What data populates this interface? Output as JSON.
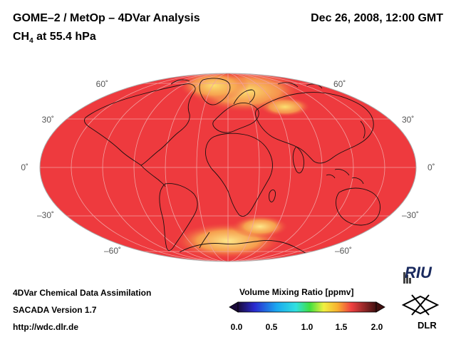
{
  "header": {
    "title": "GOME–2 / MetOp – 4DVar Analysis",
    "subtitle_species": "CH",
    "subtitle_subscript": "4",
    "subtitle_level": " at 55.4 hPa",
    "timestamp": "Dec 26, 2008, 12:00 GMT"
  },
  "map": {
    "projection": "Mollweide",
    "latitude_labels": [
      {
        "lat": 60,
        "text": "60˚"
      },
      {
        "lat": 30,
        "text": "30˚"
      },
      {
        "lat": 0,
        "text": "0˚"
      },
      {
        "lat": -30,
        "text": "–30˚"
      },
      {
        "lat": -60,
        "text": "–60˚"
      }
    ],
    "background_value_ppmv": 1.75,
    "colors": {
      "background_field": "#ee3a3e",
      "high_lat_field": "#f7c050",
      "graticule": "#f2a0a0",
      "coastline": "#1a1010"
    }
  },
  "colorbar": {
    "title": "Volume Mixing Ratio [ppmv]",
    "ticks": [
      "0.0",
      "0.5",
      "1.0",
      "1.5",
      "2.0"
    ],
    "min": 0.0,
    "max": 2.0
  },
  "footer": {
    "line1": "4DVar Chemical Data Assimilation",
    "line2": "SACADA Version 1.7",
    "url": "http://wdc.dlr.de"
  },
  "logos": {
    "riu_text": "RIU",
    "dlr_text": "DLR",
    "riu_icon": "riu-building-icon",
    "dlr_icon": "dlr-cross-icon"
  }
}
